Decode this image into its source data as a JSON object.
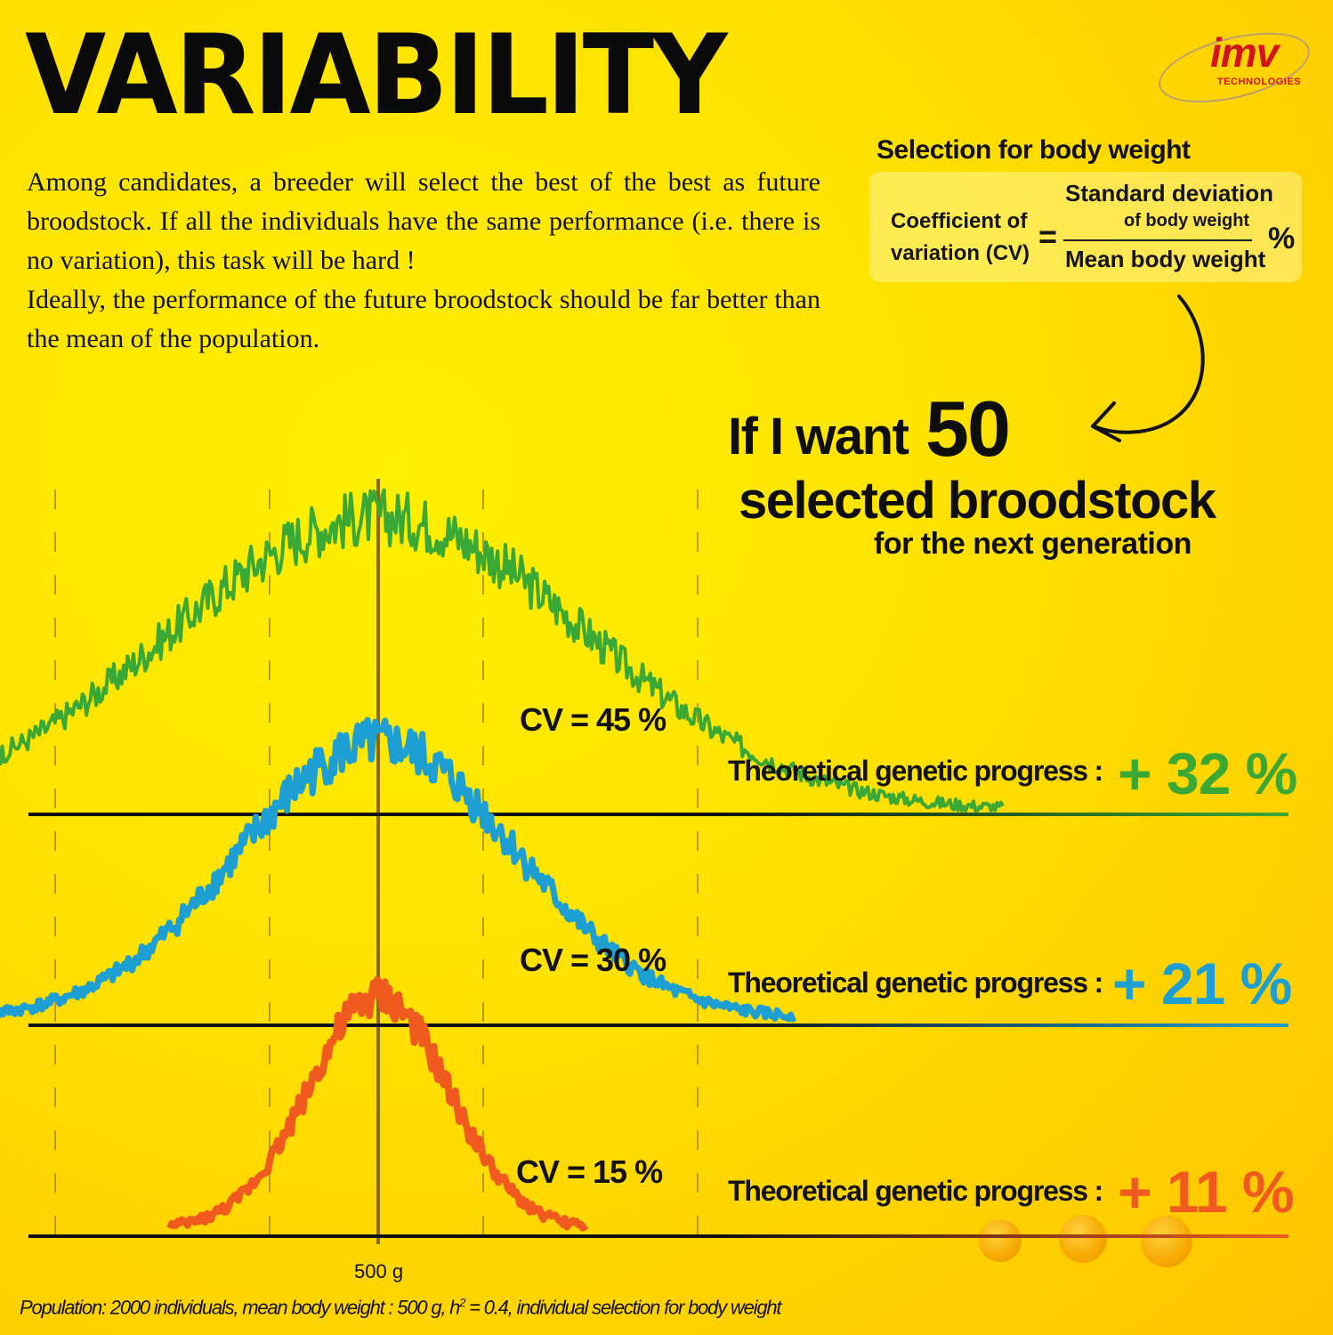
{
  "title": "VARIABILITY",
  "intro": {
    "paragraph1": "Among candidates, a breeder will select the best of the best as future broodstock. If all the individuals have the same performance (i.e. there is no variation), this task will be hard !",
    "paragraph2": "Ideally, the performance of the future broodstock should be far better than the mean of the population."
  },
  "logo": {
    "brand": "imv",
    "tagline": "TECHNOLOGIES"
  },
  "formula": {
    "heading": "Selection for body weight",
    "lhs_line1": "Coefficient of",
    "lhs_line2": "variation (CV)",
    "equals": "=",
    "numerator_line1": "Standard deviation",
    "numerator_line2": "of body weight",
    "denominator": "Mean body weight",
    "unit": "%"
  },
  "callout": {
    "line1": "If I want",
    "number": "50",
    "line2": "selected broodstock",
    "line3": "for the next generation"
  },
  "panels": [
    {
      "cv_label": "CV = 45 %",
      "progress_label": "Theoretical genetic progress :",
      "progress_value": "+ 32 %",
      "color": "#3aa835"
    },
    {
      "cv_label": "CV = 30 %",
      "progress_label": "Theoretical genetic progress :",
      "progress_value": "+ 21 %",
      "color": "#1e9fd4"
    },
    {
      "cv_label": "CV = 15 %",
      "progress_label": "Theoretical genetic progress :",
      "progress_value": "+ 11 %",
      "color": "#f05a1e"
    }
  ],
  "chart_data": {
    "type": "line",
    "mean_marker": "500 g",
    "series": [
      {
        "cv_percent": 45,
        "genetic_progress_percent": 32,
        "color": "#3aa835"
      },
      {
        "cv_percent": 30,
        "genetic_progress_percent": 21,
        "color": "#1e9fd4"
      },
      {
        "cv_percent": 15,
        "genetic_progress_percent": 11,
        "color": "#f05a1e"
      }
    ]
  },
  "mean_label": "500 g",
  "footnote": {
    "part1": "Population: 2000 individuals, mean body weight : 500 g, h",
    "sup": "2",
    "part2": " = 0.4, individual selection for body weight"
  }
}
